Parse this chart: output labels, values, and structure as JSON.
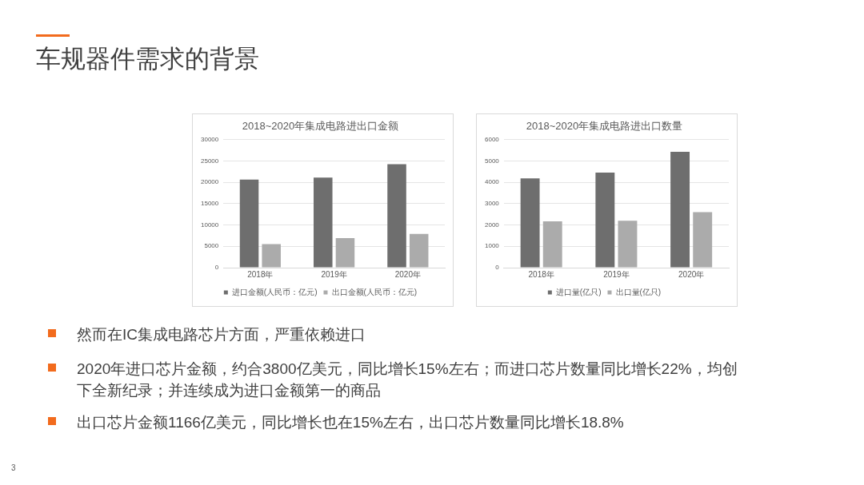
{
  "chart_data": [
    {
      "type": "bar",
      "title": "2018~2020年集成电路进出口金额",
      "categories": [
        "2018年",
        "2019年",
        "2020年"
      ],
      "series": [
        {
          "name": "进口金额(人民币：亿元)",
          "color": "#6e6e6e",
          "values": [
            20600,
            21100,
            24200
          ]
        },
        {
          "name": "出口金额(人民币：亿元)",
          "color": "#ababab",
          "values": [
            5500,
            6900,
            7900
          ]
        }
      ],
      "ylim": [
        0,
        30000
      ],
      "yticks": [
        0,
        5000,
        10000,
        15000,
        20000,
        25000,
        30000
      ],
      "grid": "y",
      "legend": "bottom"
    },
    {
      "type": "bar",
      "title": "2018~2020年集成电路进出口数量",
      "categories": [
        "2018年",
        "2019年",
        "2020年"
      ],
      "series": [
        {
          "name": "进口量(亿只)",
          "color": "#6e6e6e",
          "values": [
            4180,
            4450,
            5420
          ]
        },
        {
          "name": "出口量(亿只)",
          "color": "#ababab",
          "values": [
            2170,
            2200,
            2600
          ]
        }
      ],
      "ylim": [
        0,
        6000
      ],
      "yticks": [
        0,
        1000,
        2000,
        3000,
        4000,
        5000,
        6000
      ],
      "grid": "y",
      "legend": "bottom"
    },
    {
      "type": "other",
      "title": "车规器件需求的背景",
      "annotations": [
        "然而在IC集成电路芯片方面，严重依赖进口",
        "2020年进口芯片金额，约合3800亿美元，同比增长15%左右；而进口芯片数量同比增长22%，均创下全新纪录；并连续成为进口金额第一的商品",
        "出口芯片金额1166亿美元，同比增长也在15%左右，出口芯片数量同比增长18.8%",
        "3"
      ]
    }
  ]
}
